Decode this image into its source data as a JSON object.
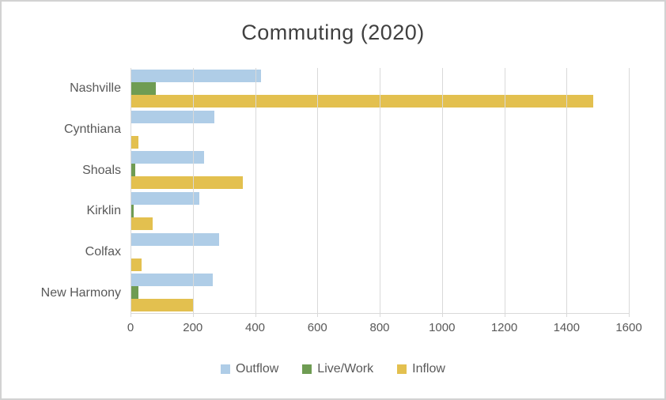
{
  "chart_data": {
    "type": "bar",
    "orientation": "horizontal",
    "title": "Commuting (2020)",
    "categories": [
      "Nashville",
      "Cynthiana",
      "Shoals",
      "Kirklin",
      "Colfax",
      "New Harmony"
    ],
    "series": [
      {
        "name": "Outflow",
        "color": "#afcde7",
        "values": [
          420,
          270,
          235,
          220,
          285,
          265
        ]
      },
      {
        "name": "Live/Work",
        "color": "#6f9c53",
        "values": [
          80,
          0,
          15,
          10,
          0,
          25
        ]
      },
      {
        "name": "Inflow",
        "color": "#e3c04f",
        "values": [
          1485,
          25,
          360,
          70,
          35,
          200
        ]
      }
    ],
    "xlim": [
      0,
      1600
    ],
    "xticks": [
      0,
      200,
      400,
      600,
      800,
      1000,
      1200,
      1400,
      1600
    ],
    "grid": true,
    "legend_position": "bottom",
    "colors": {
      "gridline": "#d9d9d9",
      "axis_text": "#595959",
      "title_text": "#404040"
    }
  }
}
